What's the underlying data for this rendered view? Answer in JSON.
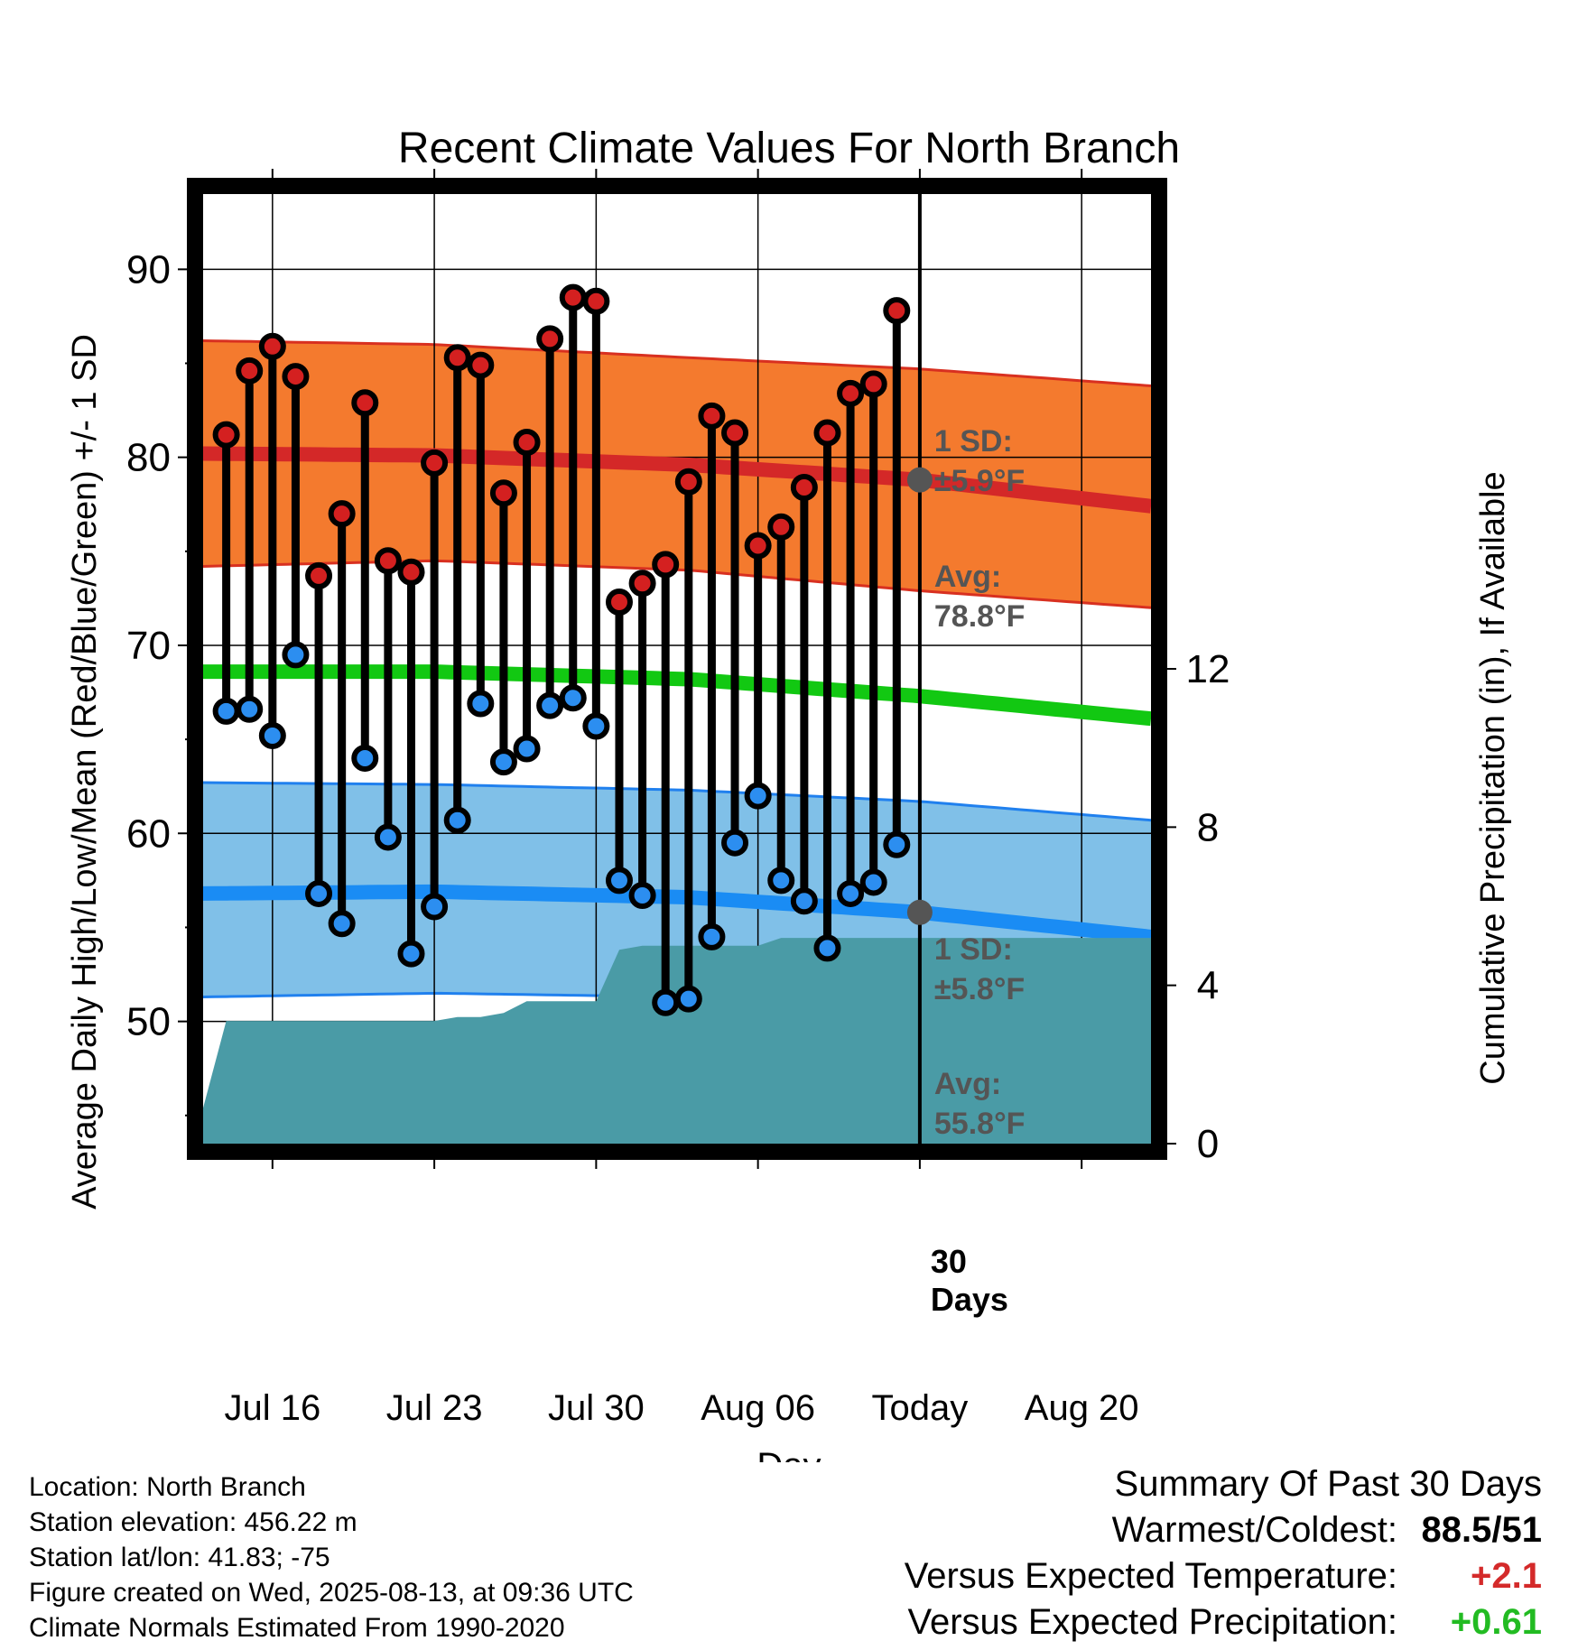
{
  "chart_data": {
    "type": "line",
    "title": "Recent Climate Values For North Branch",
    "xlabel": "Day",
    "ylabel": "Average Daily High/Low/Mean (Red/Blue/Green) +/- 1 SD",
    "ylabel_right": "Cumulative Precipitation (in), If Available",
    "x_ticks": [
      "Jul 16",
      "Jul 23",
      "Jul 30",
      "Aug 06",
      "Today",
      "Aug 20"
    ],
    "y_ticks": [
      50,
      60,
      70,
      80,
      90
    ],
    "y_right_ticks": [
      0,
      4,
      8,
      12
    ],
    "ylim": [
      43.5,
      94
    ],
    "ylim_right": [
      0,
      24
    ],
    "xlim": [
      "2025-07-13",
      "2025-08-23"
    ],
    "grid": true,
    "today": "2025-08-13",
    "annotations": {
      "high_sd": "1 SD:",
      "high_sd_value": "±5.9°F",
      "high_avg": "Avg:",
      "high_avg_value": "78.8°F",
      "low_sd": "1 SD:",
      "low_sd_value": "±5.8°F",
      "low_avg": "Avg:",
      "low_avg_value": "55.8°F",
      "days_count": "30",
      "days_word": "Days"
    },
    "normals": {
      "dates": [
        "2025-07-13",
        "2025-07-23",
        "2025-08-03",
        "2025-08-13",
        "2025-08-23"
      ],
      "high_avg": [
        80.2,
        80.1,
        79.6,
        78.8,
        77.4
      ],
      "high_upper": [
        86.2,
        86.0,
        85.3,
        84.7,
        83.8
      ],
      "high_lower": [
        74.2,
        74.5,
        74.0,
        72.9,
        72.0
      ],
      "mean_avg": [
        68.6,
        68.6,
        68.2,
        67.3,
        66.1
      ],
      "low_avg": [
        56.8,
        56.9,
        56.6,
        55.8,
        54.5
      ],
      "low_upper": [
        62.7,
        62.6,
        62.3,
        61.7,
        60.7
      ],
      "low_lower": [
        51.3,
        51.5,
        51.3,
        51.2,
        50.6
      ]
    },
    "series": [
      {
        "name": "Daily High",
        "color": "#d42020",
        "x": [
          "2025-07-14",
          "2025-07-15",
          "2025-07-16",
          "2025-07-17",
          "2025-07-18",
          "2025-07-19",
          "2025-07-20",
          "2025-07-21",
          "2025-07-22",
          "2025-07-23",
          "2025-07-24",
          "2025-07-25",
          "2025-07-26",
          "2025-07-27",
          "2025-07-28",
          "2025-07-29",
          "2025-07-30",
          "2025-07-31",
          "2025-08-01",
          "2025-08-02",
          "2025-08-03",
          "2025-08-04",
          "2025-08-05",
          "2025-08-06",
          "2025-08-07",
          "2025-08-08",
          "2025-08-09",
          "2025-08-10",
          "2025-08-11",
          "2025-08-12"
        ],
        "values": [
          81.2,
          84.6,
          85.9,
          84.3,
          73.7,
          77.0,
          82.9,
          74.5,
          73.9,
          79.7,
          85.3,
          84.9,
          78.1,
          80.8,
          86.3,
          88.5,
          88.3,
          72.3,
          73.3,
          74.3,
          78.7,
          82.2,
          81.3,
          75.3,
          76.3,
          78.4,
          81.3,
          83.4,
          83.9,
          87.8
        ]
      },
      {
        "name": "Daily Low",
        "color": "#2c8ef0",
        "x": [
          "2025-07-14",
          "2025-07-15",
          "2025-07-16",
          "2025-07-17",
          "2025-07-18",
          "2025-07-19",
          "2025-07-20",
          "2025-07-21",
          "2025-07-22",
          "2025-07-23",
          "2025-07-24",
          "2025-07-25",
          "2025-07-26",
          "2025-07-27",
          "2025-07-28",
          "2025-07-29",
          "2025-07-30",
          "2025-07-31",
          "2025-08-01",
          "2025-08-02",
          "2025-08-03",
          "2025-08-04",
          "2025-08-05",
          "2025-08-06",
          "2025-08-07",
          "2025-08-08",
          "2025-08-09",
          "2025-08-10",
          "2025-08-11",
          "2025-08-12"
        ],
        "values": [
          66.5,
          66.6,
          65.2,
          69.5,
          56.8,
          55.2,
          64.0,
          59.8,
          53.6,
          56.1,
          60.7,
          66.9,
          63.8,
          64.5,
          66.8,
          67.2,
          65.7,
          57.5,
          56.7,
          51.0,
          51.2,
          54.5,
          59.5,
          62.0,
          57.5,
          56.4,
          53.9,
          56.8,
          57.4,
          59.4
        ]
      },
      {
        "name": "Cumulative Precipitation",
        "color": "#4a9ba6",
        "x": [
          "2025-07-13",
          "2025-07-14",
          "2025-07-23",
          "2025-07-24",
          "2025-07-25",
          "2025-07-26",
          "2025-07-27",
          "2025-07-28",
          "2025-07-29",
          "2025-07-30",
          "2025-07-31",
          "2025-08-01",
          "2025-08-02",
          "2025-08-03",
          "2025-08-04",
          "2025-08-05",
          "2025-08-06",
          "2025-08-07",
          "2025-08-23"
        ],
        "values": [
          0.9,
          3.1,
          3.1,
          3.2,
          3.2,
          3.3,
          3.6,
          3.6,
          3.6,
          3.6,
          4.9,
          5.0,
          5.0,
          5.0,
          5.0,
          5.0,
          5.0,
          5.2,
          5.2
        ]
      }
    ]
  },
  "footer": {
    "location": "Location: North Branch",
    "elevation": "Station elevation: 456.22 m",
    "latlon": "Station lat/lon: 41.83; -75",
    "created": "Figure created on Wed, 2025-08-13, at 09:36 UTC",
    "normals": "Climate Normals Estimated From 1990-2020"
  },
  "summary": {
    "heading": "Summary Of Past 30 Days",
    "warmest_label": "Warmest/Coldest:",
    "warmest_value": "88.5/51",
    "temp_label": "Versus Expected Temperature:",
    "temp_value": "+2.1",
    "temp_color": "#d42a2a",
    "precip_label": "Versus Expected Precipitation:",
    "precip_value": "+0.61",
    "precip_color": "#22bb22"
  }
}
